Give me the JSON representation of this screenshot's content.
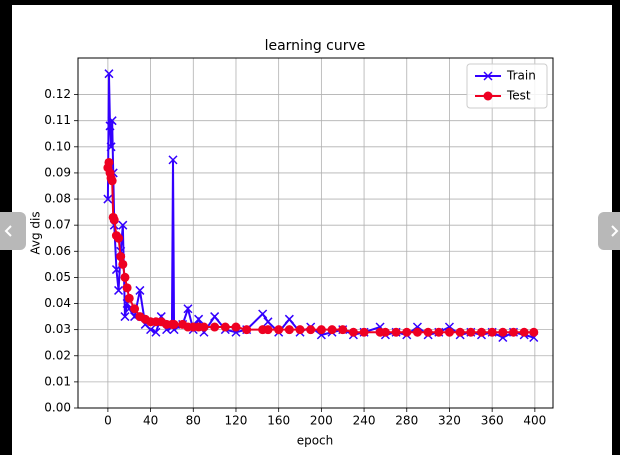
{
  "chart_data": {
    "type": "line",
    "title": "learning curve",
    "x_label": "epoch",
    "y_label": "Avg dis",
    "x": [
      0,
      1,
      2,
      3,
      4,
      5,
      6,
      8,
      10,
      12,
      14,
      16,
      18,
      20,
      25,
      30,
      35,
      40,
      45,
      50,
      55,
      60,
      61,
      62,
      70,
      75,
      80,
      85,
      90,
      100,
      110,
      120,
      130,
      145,
      150,
      160,
      170,
      180,
      190,
      200,
      210,
      220,
      230,
      240,
      255,
      260,
      270,
      280,
      290,
      300,
      310,
      320,
      330,
      340,
      350,
      360,
      370,
      380,
      390,
      399
    ],
    "series": [
      {
        "name": "Train",
        "color": "#3300ff",
        "marker": "x",
        "values": [
          0.08,
          0.128,
          0.108,
          0.1,
          0.11,
          0.09,
          0.07,
          0.053,
          0.045,
          0.06,
          0.07,
          0.035,
          0.04,
          0.038,
          0.035,
          0.045,
          0.032,
          0.03,
          0.029,
          0.035,
          0.03,
          0.031,
          0.095,
          0.03,
          0.032,
          0.038,
          0.03,
          0.034,
          0.029,
          0.035,
          0.03,
          0.029,
          0.03,
          0.036,
          0.033,
          0.029,
          0.034,
          0.029,
          0.031,
          0.028,
          0.029,
          0.03,
          0.028,
          0.029,
          0.031,
          0.028,
          0.029,
          0.028,
          0.031,
          0.028,
          0.029,
          0.031,
          0.028,
          0.029,
          0.028,
          0.029,
          0.027,
          0.029,
          0.028,
          0.027
        ]
      },
      {
        "name": "Test",
        "color": "#ee0022",
        "marker": "o",
        "values": [
          0.092,
          0.094,
          0.09,
          0.088,
          0.087,
          0.073,
          0.072,
          0.066,
          0.065,
          0.058,
          0.055,
          0.05,
          0.046,
          0.042,
          0.038,
          0.035,
          0.034,
          0.033,
          0.033,
          0.033,
          0.032,
          0.032,
          0.032,
          0.032,
          0.032,
          0.031,
          0.031,
          0.031,
          0.031,
          0.031,
          0.031,
          0.031,
          0.03,
          0.03,
          0.03,
          0.03,
          0.03,
          0.03,
          0.03,
          0.03,
          0.03,
          0.03,
          0.029,
          0.029,
          0.029,
          0.029,
          0.029,
          0.029,
          0.029,
          0.029,
          0.029,
          0.029,
          0.029,
          0.029,
          0.029,
          0.029,
          0.029,
          0.029,
          0.029,
          0.029
        ]
      }
    ],
    "xlim": [
      -28,
      417
    ],
    "xticks": [
      0,
      40,
      80,
      120,
      160,
      200,
      240,
      280,
      320,
      360,
      400
    ],
    "ylim": [
      0,
      0.134
    ],
    "yticks": [
      {
        "value": 0,
        "label": "0.00"
      },
      {
        "value": 0.01,
        "label": "0.01"
      },
      {
        "value": 0.02,
        "label": "0.02"
      },
      {
        "value": 0.03,
        "label": "0.03"
      },
      {
        "value": 0.04,
        "label": "0.04"
      },
      {
        "value": 0.05,
        "label": "0.05"
      },
      {
        "value": 0.06,
        "label": "0.06"
      },
      {
        "value": 0.07,
        "label": "0.07"
      },
      {
        "value": 0.08,
        "label": "0.08"
      },
      {
        "value": 0.09,
        "label": "0.09"
      },
      {
        "value": 0.1,
        "label": "0.10"
      },
      {
        "value": 0.11,
        "label": "0.11"
      },
      {
        "value": 0.12,
        "label": "0.12"
      }
    ],
    "grid": true,
    "legend": "upper right"
  }
}
